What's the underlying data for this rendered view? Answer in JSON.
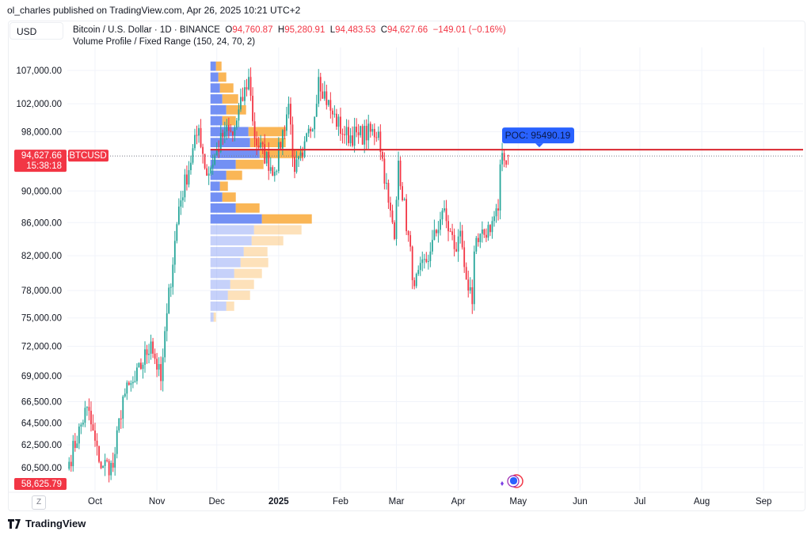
{
  "header": {
    "published": "ol_charles published on TradingView.com, Apr 26, 2025 10:21 UTC+2"
  },
  "currency_button": "USD",
  "legend": {
    "symbol": "Bitcoin / U.S. Dollar · 1D · BINANCE",
    "o_label": "O",
    "o": "94,760.87",
    "h_label": "H",
    "h": "95,280.91",
    "l_label": "L",
    "l": "94,483.53",
    "c_label": "C",
    "c": "94,627.66",
    "change": "−149.01 (−0.16%)",
    "indicator": "Volume Profile / Fixed Range (150, 24, 70, 2)"
  },
  "price_label": {
    "price": "94,627.66",
    "countdown": "15:38:18",
    "ticker": "BTCUSD"
  },
  "low_label": "58,625.79",
  "poc_label": "POC: 95490.19",
  "zoom_button": "Z",
  "footer": {
    "brand": "TradingView"
  },
  "colors": {
    "up": "#26a69a",
    "down": "#f23645",
    "vp_up": "#5b7cf2",
    "vp_down": "#f9a938",
    "poc": "#d9262f",
    "poc_badge": "#2962ff"
  },
  "chart_data": {
    "type": "candlestick",
    "symbol": "BTCUSD",
    "interval": "1D",
    "scale": "log",
    "y_ticks": [
      107000,
      102000,
      98000,
      90000,
      86000,
      82000,
      78000,
      75000,
      72000,
      69000,
      66500,
      64500,
      62500,
      60500
    ],
    "x_ticks": [
      {
        "label": "Oct",
        "date": "2024-10-01"
      },
      {
        "label": "Nov",
        "date": "2024-11-01"
      },
      {
        "label": "Dec",
        "date": "2024-12-01"
      },
      {
        "label": "2025",
        "date": "2025-01-01",
        "bold": true
      },
      {
        "label": "Feb",
        "date": "2025-02-01"
      },
      {
        "label": "Mar",
        "date": "2025-03-01"
      },
      {
        "label": "Apr",
        "date": "2025-04-01"
      },
      {
        "label": "May",
        "date": "2025-05-01"
      },
      {
        "label": "Jun",
        "date": "2025-06-01"
      },
      {
        "label": "Jul",
        "date": "2025-07-01"
      },
      {
        "label": "Aug",
        "date": "2025-08-01"
      },
      {
        "label": "Sep",
        "date": "2025-09-01"
      }
    ],
    "approx_closes": [
      [
        "2024-09-18",
        61000
      ],
      [
        "2024-09-27",
        66000
      ],
      [
        "2024-10-03",
        61000
      ],
      [
        "2024-10-10",
        60500
      ],
      [
        "2024-10-15",
        67000
      ],
      [
        "2024-10-21",
        68500
      ],
      [
        "2024-10-29",
        72500
      ],
      [
        "2024-11-03",
        68500
      ],
      [
        "2024-11-06",
        75500
      ],
      [
        "2024-11-12",
        88000
      ],
      [
        "2024-11-22",
        98500
      ],
      [
        "2024-11-26",
        92000
      ],
      [
        "2024-12-05",
        98000
      ],
      [
        "2024-12-09",
        97500
      ],
      [
        "2024-12-17",
        106000
      ],
      [
        "2024-12-20",
        97000
      ],
      [
        "2024-12-30",
        92500
      ],
      [
        "2025-01-06",
        102000
      ],
      [
        "2025-01-09",
        92500
      ],
      [
        "2025-01-13",
        94500
      ],
      [
        "2025-01-20",
        102000
      ],
      [
        "2025-01-21",
        106000
      ],
      [
        "2025-01-27",
        101000
      ],
      [
        "2025-02-03",
        97500
      ],
      [
        "2025-02-10",
        97500
      ],
      [
        "2025-02-20",
        98000
      ],
      [
        "2025-02-25",
        88500
      ],
      [
        "2025-02-28",
        84000
      ],
      [
        "2025-03-02",
        94000
      ],
      [
        "2025-03-10",
        78500
      ],
      [
        "2025-03-18",
        82500
      ],
      [
        "2025-03-24",
        87500
      ],
      [
        "2025-03-31",
        82500
      ],
      [
        "2025-04-02",
        85000
      ],
      [
        "2025-04-06",
        78000
      ],
      [
        "2025-04-08",
        76500
      ],
      [
        "2025-04-09",
        82500
      ],
      [
        "2025-04-14",
        84500
      ],
      [
        "2025-04-21",
        87500
      ],
      [
        "2025-04-22",
        93500
      ],
      [
        "2025-04-26",
        94627.66
      ]
    ],
    "last_price": 94627.66,
    "poc": 95490.19,
    "volume_profile": {
      "range": [
        "2024-12-01",
        "2025-01-19"
      ],
      "low": 74500,
      "high": 108500,
      "rows": 24,
      "up": [
        7,
        10,
        12,
        15,
        20,
        15,
        48,
        50,
        62,
        32,
        20,
        12,
        15,
        32,
        65,
        55,
        52,
        42,
        38,
        30,
        25,
        22,
        20,
        4
      ],
      "down": [
        7,
        10,
        17,
        20,
        25,
        17,
        47,
        45,
        55,
        35,
        20,
        10,
        17,
        30,
        63,
        60,
        40,
        30,
        35,
        35,
        30,
        28,
        10,
        3
      ],
      "value_area_rows": [
        6,
        23
      ]
    }
  }
}
